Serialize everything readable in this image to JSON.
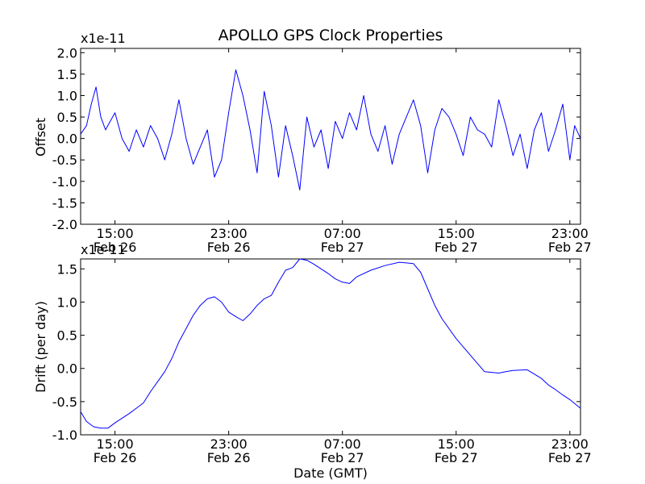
{
  "chart_data": [
    {
      "panel": "top",
      "type": "line",
      "title": "APOLLO GPS Clock Properties",
      "xlabel": "",
      "ylabel": "Offset",
      "y_exponent_label": "x1e-11",
      "xlim": [
        "2011-02-26 12:35",
        "2011-02-27 23:45"
      ],
      "ylim": [
        -2.0,
        2.1
      ],
      "yticks": [
        -2.0,
        -1.5,
        -1.0,
        -0.5,
        0.0,
        0.5,
        1.0,
        1.5,
        2.0
      ],
      "ytick_labels": [
        "-2.0",
        "-1.5",
        "-1.0",
        "-0.5",
        "0.0",
        "0.5",
        "1.0",
        "1.5",
        "2.0"
      ],
      "xticks": [
        {
          "x": "2011-02-26 15:00",
          "line1": "15:00",
          "line2": "Feb 26"
        },
        {
          "x": "2011-02-26 23:00",
          "line1": "23:00",
          "line2": "Feb 26"
        },
        {
          "x": "2011-02-27 07:00",
          "line1": "07:00",
          "line2": "Feb 27"
        },
        {
          "x": "2011-02-27 15:00",
          "line1": "15:00",
          "line2": "Feb 27"
        },
        {
          "x": "2011-02-27 23:00",
          "line1": "23:00",
          "line2": "Feb 27"
        }
      ],
      "grid": false,
      "line_color": "#0000ff",
      "series": [
        {
          "x": [
            "2011-02-26 12:35",
            "2011-02-26 13:00",
            "2011-02-26 13:20",
            "2011-02-26 13:40",
            "2011-02-26 14:00",
            "2011-02-26 14:20",
            "2011-02-26 14:40",
            "2011-02-26 15:00",
            "2011-02-26 15:30",
            "2011-02-26 16:00",
            "2011-02-26 16:30",
            "2011-02-26 17:00",
            "2011-02-26 17:30",
            "2011-02-26 18:00",
            "2011-02-26 18:30",
            "2011-02-26 19:00",
            "2011-02-26 19:30",
            "2011-02-26 20:00",
            "2011-02-26 20:30",
            "2011-02-26 21:00",
            "2011-02-26 21:30",
            "2011-02-26 22:00",
            "2011-02-26 22:30",
            "2011-02-26 23:00",
            "2011-02-26 23:30",
            "2011-02-27 00:00",
            "2011-02-27 00:30",
            "2011-02-27 01:00",
            "2011-02-27 01:30",
            "2011-02-27 02:00",
            "2011-02-27 02:30",
            "2011-02-27 03:00",
            "2011-02-27 03:30",
            "2011-02-27 04:00",
            "2011-02-27 04:30",
            "2011-02-27 05:00",
            "2011-02-27 05:30",
            "2011-02-27 06:00",
            "2011-02-27 06:30",
            "2011-02-27 07:00",
            "2011-02-27 07:30",
            "2011-02-27 08:00",
            "2011-02-27 08:30",
            "2011-02-27 09:00",
            "2011-02-27 09:30",
            "2011-02-27 10:00",
            "2011-02-27 10:30",
            "2011-02-27 11:00",
            "2011-02-27 11:30",
            "2011-02-27 12:00",
            "2011-02-27 12:30",
            "2011-02-27 13:00",
            "2011-02-27 13:30",
            "2011-02-27 14:00",
            "2011-02-27 14:30",
            "2011-02-27 15:00",
            "2011-02-27 15:30",
            "2011-02-27 16:00",
            "2011-02-27 16:30",
            "2011-02-27 17:00",
            "2011-02-27 17:30",
            "2011-02-27 18:00",
            "2011-02-27 18:30",
            "2011-02-27 19:00",
            "2011-02-27 19:30",
            "2011-02-27 20:00",
            "2011-02-27 20:30",
            "2011-02-27 21:00",
            "2011-02-27 21:30",
            "2011-02-27 22:00",
            "2011-02-27 22:30",
            "2011-02-27 23:00",
            "2011-02-27 23:20",
            "2011-02-27 23:45"
          ],
          "y": [
            0.1,
            0.3,
            0.8,
            1.2,
            0.5,
            0.2,
            0.4,
            0.6,
            0.0,
            -0.3,
            0.2,
            -0.2,
            0.3,
            0.0,
            -0.5,
            0.1,
            0.9,
            0.0,
            -0.6,
            -0.2,
            0.2,
            -0.9,
            -0.5,
            0.6,
            1.6,
            1.0,
            0.2,
            -0.8,
            1.1,
            0.3,
            -0.9,
            0.3,
            -0.4,
            -1.2,
            0.5,
            -0.2,
            0.2,
            -0.7,
            0.4,
            0.0,
            0.6,
            0.2,
            1.0,
            0.1,
            -0.3,
            0.3,
            -0.6,
            0.1,
            0.5,
            0.9,
            0.3,
            -0.8,
            0.2,
            0.7,
            0.5,
            0.1,
            -0.4,
            0.5,
            0.2,
            0.1,
            -0.2,
            0.9,
            0.3,
            -0.4,
            0.1,
            -0.7,
            0.2,
            0.6,
            -0.3,
            0.2,
            0.8,
            -0.5,
            0.3,
            0.0
          ]
        }
      ]
    },
    {
      "panel": "bottom",
      "type": "line",
      "title": "",
      "xlabel": "Date (GMT)",
      "ylabel": "Drift (per day)",
      "y_exponent_label": "x1e-11",
      "xlim": [
        "2011-02-26 12:35",
        "2011-02-27 23:45"
      ],
      "ylim": [
        -1.0,
        1.65
      ],
      "yticks": [
        -1.0,
        -0.5,
        0.0,
        0.5,
        1.0,
        1.5
      ],
      "ytick_labels": [
        "-1.0",
        "-0.5",
        "0.0",
        "0.5",
        "1.0",
        "1.5"
      ],
      "xticks": [
        {
          "x": "2011-02-26 15:00",
          "line1": "15:00",
          "line2": "Feb 26"
        },
        {
          "x": "2011-02-26 23:00",
          "line1": "23:00",
          "line2": "Feb 26"
        },
        {
          "x": "2011-02-27 07:00",
          "line1": "07:00",
          "line2": "Feb 27"
        },
        {
          "x": "2011-02-27 15:00",
          "line1": "15:00",
          "line2": "Feb 27"
        },
        {
          "x": "2011-02-27 23:00",
          "line1": "23:00",
          "line2": "Feb 27"
        }
      ],
      "grid": false,
      "line_color": "#0000ff",
      "series": [
        {
          "x": [
            "2011-02-26 12:35",
            "2011-02-26 13:00",
            "2011-02-26 13:30",
            "2011-02-26 14:00",
            "2011-02-26 14:30",
            "2011-02-26 15:00",
            "2011-02-26 15:30",
            "2011-02-26 16:00",
            "2011-02-26 16:30",
            "2011-02-26 17:00",
            "2011-02-26 17:30",
            "2011-02-26 18:00",
            "2011-02-26 18:30",
            "2011-02-26 19:00",
            "2011-02-26 19:30",
            "2011-02-26 20:00",
            "2011-02-26 20:30",
            "2011-02-26 21:00",
            "2011-02-26 21:30",
            "2011-02-26 22:00",
            "2011-02-26 22:30",
            "2011-02-26 23:00",
            "2011-02-26 23:30",
            "2011-02-27 00:00",
            "2011-02-27 00:30",
            "2011-02-27 01:00",
            "2011-02-27 01:30",
            "2011-02-27 02:00",
            "2011-02-27 02:30",
            "2011-02-27 03:00",
            "2011-02-27 03:30",
            "2011-02-27 04:00",
            "2011-02-27 04:30",
            "2011-02-27 05:00",
            "2011-02-27 05:30",
            "2011-02-27 06:00",
            "2011-02-27 06:30",
            "2011-02-27 07:00",
            "2011-02-27 07:30",
            "2011-02-27 08:00",
            "2011-02-27 09:00",
            "2011-02-27 10:00",
            "2011-02-27 11:00",
            "2011-02-27 12:00",
            "2011-02-27 12:30",
            "2011-02-27 13:00",
            "2011-02-27 13:30",
            "2011-02-27 14:00",
            "2011-02-27 15:00",
            "2011-02-27 16:00",
            "2011-02-27 17:00",
            "2011-02-27 18:00",
            "2011-02-27 18:30",
            "2011-02-27 19:00",
            "2011-02-27 20:00",
            "2011-02-27 21:00",
            "2011-02-27 21:30",
            "2011-02-27 22:00",
            "2011-02-27 22:30",
            "2011-02-27 23:00",
            "2011-02-27 23:45"
          ],
          "y": [
            -0.65,
            -0.8,
            -0.88,
            -0.9,
            -0.9,
            -0.82,
            -0.75,
            -0.68,
            -0.6,
            -0.52,
            -0.35,
            -0.2,
            -0.05,
            0.15,
            0.4,
            0.6,
            0.8,
            0.95,
            1.05,
            1.08,
            1.0,
            0.85,
            0.78,
            0.72,
            0.82,
            0.95,
            1.05,
            1.1,
            1.3,
            1.48,
            1.52,
            1.65,
            1.63,
            1.57,
            1.5,
            1.43,
            1.35,
            1.3,
            1.28,
            1.38,
            1.48,
            1.55,
            1.6,
            1.58,
            1.45,
            1.2,
            0.95,
            0.75,
            0.45,
            0.2,
            -0.05,
            -0.07,
            -0.05,
            -0.03,
            -0.02,
            -0.15,
            -0.25,
            -0.32,
            -0.4,
            -0.47,
            -0.6
          ]
        }
      ]
    }
  ]
}
